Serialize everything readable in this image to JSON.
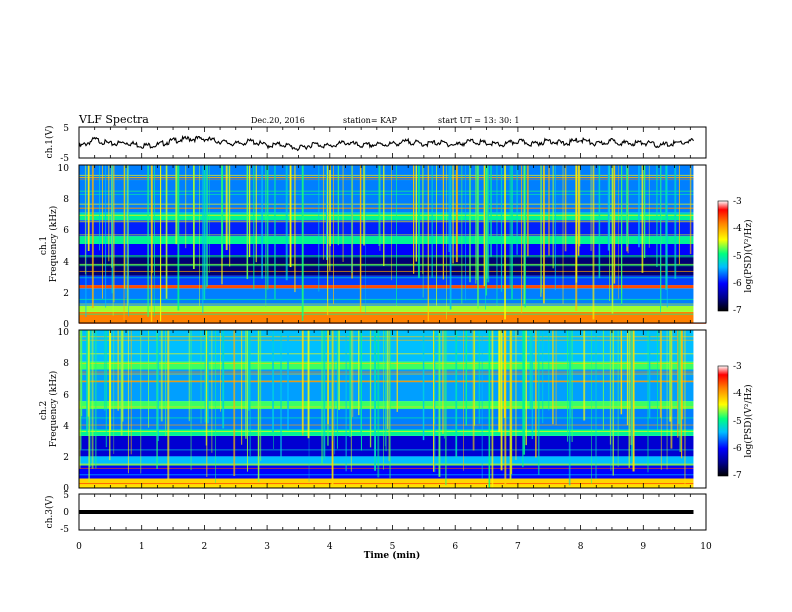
{
  "header": {
    "title": "VLF Spectra",
    "date": "Dec.20, 2016",
    "station": "station= KAP",
    "start": "start  UT =   13: 30: 1"
  },
  "chart_data": [
    {
      "type": "line",
      "name": "ch1-voltage",
      "ylabel": "ch.1(V)",
      "ylim": [
        -5,
        5
      ],
      "yticks": [
        "5",
        "-5"
      ],
      "xlim": [
        0,
        10
      ],
      "x": [
        0,
        0.25,
        0.5,
        0.75,
        1,
        1.25,
        1.5,
        1.75,
        2,
        2.25,
        2.5,
        2.75,
        3,
        3.25,
        3.5,
        3.75,
        4,
        4.25,
        4.5,
        4.75,
        5,
        5.25,
        5.5,
        5.75,
        6,
        6.25,
        6.5,
        6.75,
        7,
        7.25,
        7.5,
        7.75,
        8,
        8.25,
        8.5,
        8.75,
        9,
        9.25,
        9.5,
        9.8
      ],
      "y": [
        -1.5,
        1,
        -0.5,
        0,
        -1,
        -0.8,
        0.6,
        1.2,
        1.2,
        0.3,
        -0.5,
        0.4,
        -1,
        -0.6,
        -2,
        -0.5,
        -1.2,
        0,
        -1,
        -0.7,
        -0.5,
        0.3,
        -0.5,
        0,
        -0.8,
        0.4,
        -0.3,
        -0.8,
        0.4,
        -0.5,
        0.6,
        -0.4,
        1,
        -0.6,
        0.5,
        -0.4,
        0,
        -1,
        -0.3,
        0.5
      ]
    },
    {
      "type": "heatmap",
      "name": "ch1-spectrogram",
      "ylabel": "ch.1\nFrequency (kHz)",
      "ylim": [
        0,
        10
      ],
      "yticks": [
        "0",
        "2",
        "4",
        "6",
        "8",
        "10"
      ],
      "xlim": [
        0,
        10
      ],
      "colorbar": {
        "label": "log(PSD)(V²/Hz)",
        "range": [
          -7,
          -3
        ],
        "ticks": [
          "-3",
          "-4",
          "-5",
          "-6",
          "-7"
        ]
      },
      "bands_khz": [
        {
          "from": 0.0,
          "to": 0.7,
          "level": -3.8
        },
        {
          "from": 0.7,
          "to": 1.1,
          "level": -4.6
        },
        {
          "from": 1.1,
          "to": 2.2,
          "level": -5.6
        },
        {
          "from": 2.2,
          "to": 2.4,
          "level": -3.6
        },
        {
          "from": 2.4,
          "to": 3.0,
          "level": -5.8
        },
        {
          "from": 3.0,
          "to": 4.3,
          "level": -6.6
        },
        {
          "from": 4.3,
          "to": 5.0,
          "level": -6.0
        },
        {
          "from": 5.0,
          "to": 5.5,
          "level": -5.0
        },
        {
          "from": 5.5,
          "to": 6.5,
          "level": -5.9
        },
        {
          "from": 6.5,
          "to": 7.0,
          "level": -5.0
        },
        {
          "from": 7.0,
          "to": 10.0,
          "level": -5.6
        }
      ]
    },
    {
      "type": "heatmap",
      "name": "ch2-spectrogram",
      "ylabel": "ch.2\nFrequency (kHz)",
      "ylim": [
        0,
        10
      ],
      "yticks": [
        "0",
        "2",
        "4",
        "6",
        "8",
        "10"
      ],
      "xlim": [
        0,
        10
      ],
      "colorbar": {
        "label": "log(PSD)(V²/Hz)",
        "range": [
          -7,
          -3
        ],
        "ticks": [
          "-3",
          "-4",
          "-5",
          "-6",
          "-7"
        ]
      },
      "bands_khz": [
        {
          "from": 0.0,
          "to": 0.6,
          "level": -4.2
        },
        {
          "from": 0.6,
          "to": 1.5,
          "level": -6.0
        },
        {
          "from": 1.5,
          "to": 2.0,
          "level": -5.4
        },
        {
          "from": 2.0,
          "to": 3.3,
          "level": -6.2
        },
        {
          "from": 3.3,
          "to": 3.7,
          "level": -5.0
        },
        {
          "from": 3.7,
          "to": 5.0,
          "level": -5.6
        },
        {
          "from": 5.0,
          "to": 5.5,
          "level": -4.8
        },
        {
          "from": 5.5,
          "to": 7.5,
          "level": -5.5
        },
        {
          "from": 7.5,
          "to": 8.0,
          "level": -4.8
        },
        {
          "from": 8.0,
          "to": 10.0,
          "level": -5.4
        }
      ]
    },
    {
      "type": "line",
      "name": "ch3-voltage",
      "ylabel": "ch.3(V)",
      "ylim": [
        -5,
        5
      ],
      "yticks": [
        "5",
        "0",
        "-5"
      ],
      "xlim": [
        0,
        10
      ],
      "x": [
        0,
        9.8
      ],
      "y": [
        0,
        0
      ]
    }
  ],
  "xaxis": {
    "label": "Time  (min)",
    "ticks": [
      "0",
      "1",
      "2",
      "3",
      "4",
      "5",
      "6",
      "7",
      "8",
      "9",
      "10"
    ]
  },
  "colors": {
    "trace": "#000000",
    "spectrum_scale": [
      "#000000",
      "#00008b",
      "#0000ff",
      "#00bfff",
      "#00ffff",
      "#00ff80",
      "#ffff00",
      "#ff8000",
      "#ff0000",
      "#ffffff"
    ]
  }
}
